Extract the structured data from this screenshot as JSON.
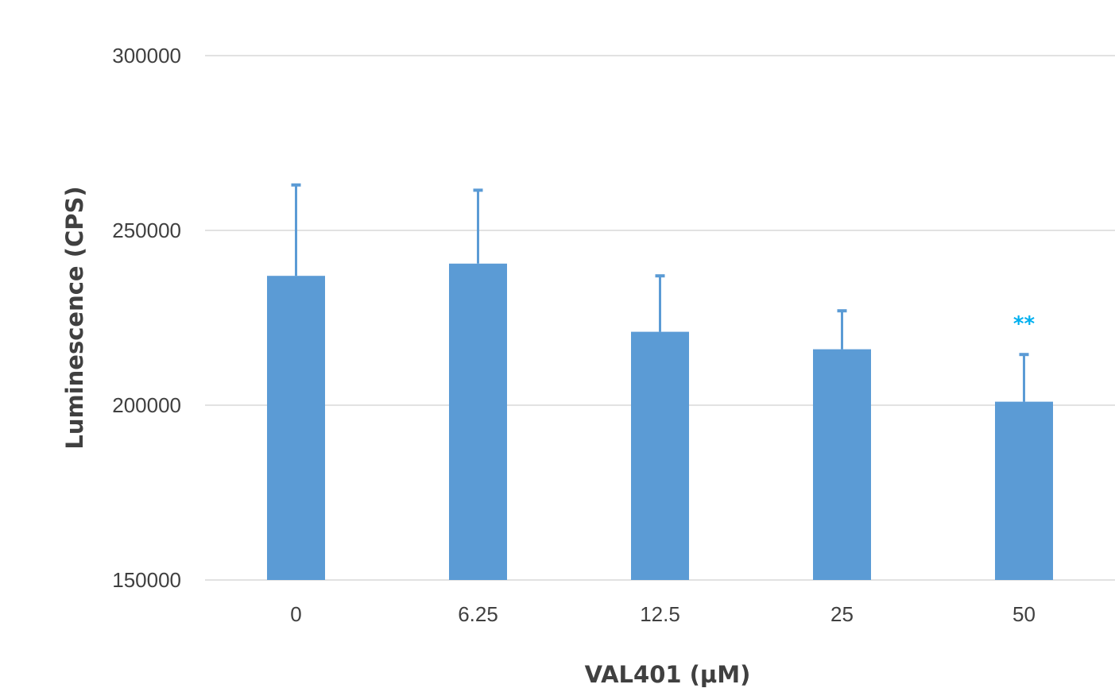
{
  "chart_data": {
    "type": "bar",
    "title": "",
    "xlabel": "VAL401 (µM)",
    "ylabel": "Luminescence (CPS)",
    "categories": [
      "0",
      "6.25",
      "12.5",
      "25",
      "50"
    ],
    "series": [
      {
        "values": [
          237000,
          240500,
          221000,
          216000,
          201000
        ],
        "error_plus": [
          26000,
          21000,
          16000,
          11000,
          13500
        ],
        "color": "#5b9bd5"
      }
    ],
    "ylim": [
      150000,
      300000
    ],
    "yticks": [
      150000,
      200000,
      250000,
      300000
    ],
    "ytick_labels": [
      "150000",
      "200000",
      "250000",
      "300000"
    ],
    "grid": true,
    "legend": "none",
    "annotations": [
      {
        "category": "50",
        "text": "**",
        "color": "#00b0f0"
      }
    ],
    "gridline_color": "#d9d9d9",
    "error_bar_color": "#5b9bd5"
  }
}
